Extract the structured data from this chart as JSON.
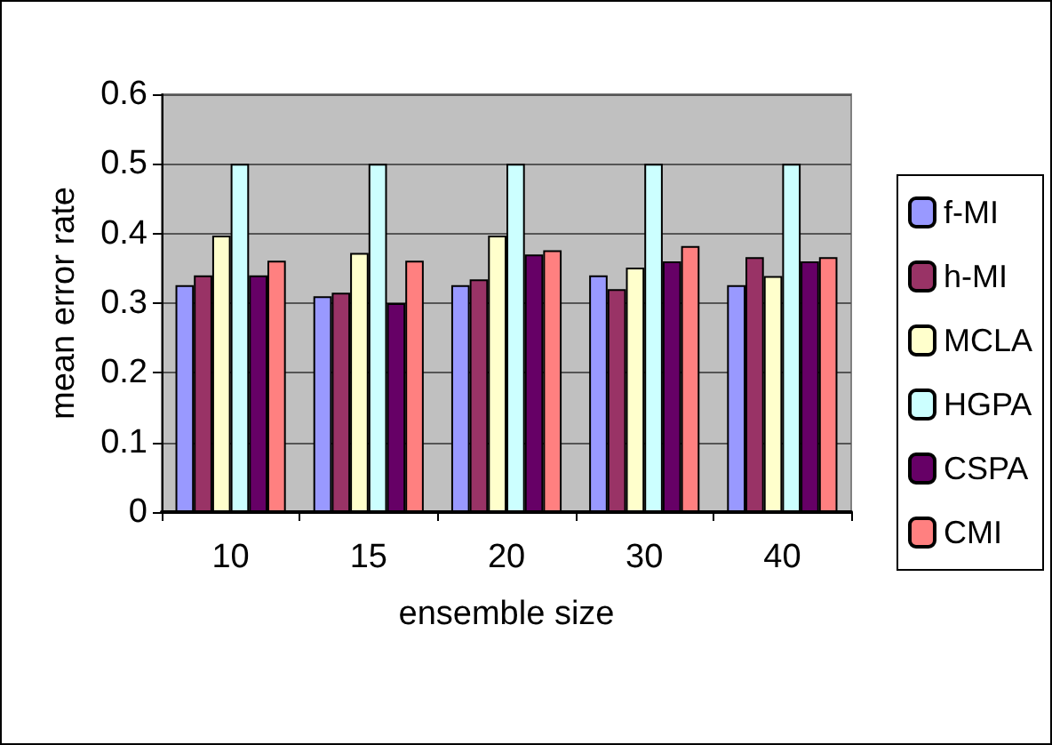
{
  "chart_data": {
    "type": "bar",
    "xlabel": "ensemble size",
    "ylabel": "mean error rate",
    "categories": [
      "10",
      "15",
      "20",
      "30",
      "40"
    ],
    "series": [
      {
        "name": "f-MI",
        "color": "#9999ff",
        "values": [
          0.326,
          0.31,
          0.326,
          0.34,
          0.326
        ]
      },
      {
        "name": "h-MI",
        "color": "#993366",
        "values": [
          0.34,
          0.315,
          0.334,
          0.32,
          0.366
        ]
      },
      {
        "name": "MCLA",
        "color": "#ffffcc",
        "values": [
          0.397,
          0.372,
          0.397,
          0.351,
          0.339
        ]
      },
      {
        "name": "HGPA",
        "color": "#ccffff",
        "values": [
          0.5,
          0.5,
          0.5,
          0.5,
          0.5
        ]
      },
      {
        "name": "CSPA",
        "color": "#660066",
        "values": [
          0.34,
          0.3,
          0.37,
          0.36,
          0.36
        ]
      },
      {
        "name": "CMI",
        "color": "#ff8080",
        "values": [
          0.361,
          0.361,
          0.376,
          0.382,
          0.366
        ]
      }
    ],
    "ylim": [
      0,
      0.6
    ],
    "yticks": [
      0,
      0.1,
      0.2,
      0.3,
      0.4,
      0.5,
      0.6
    ],
    "grid": "y",
    "legend": "right"
  }
}
